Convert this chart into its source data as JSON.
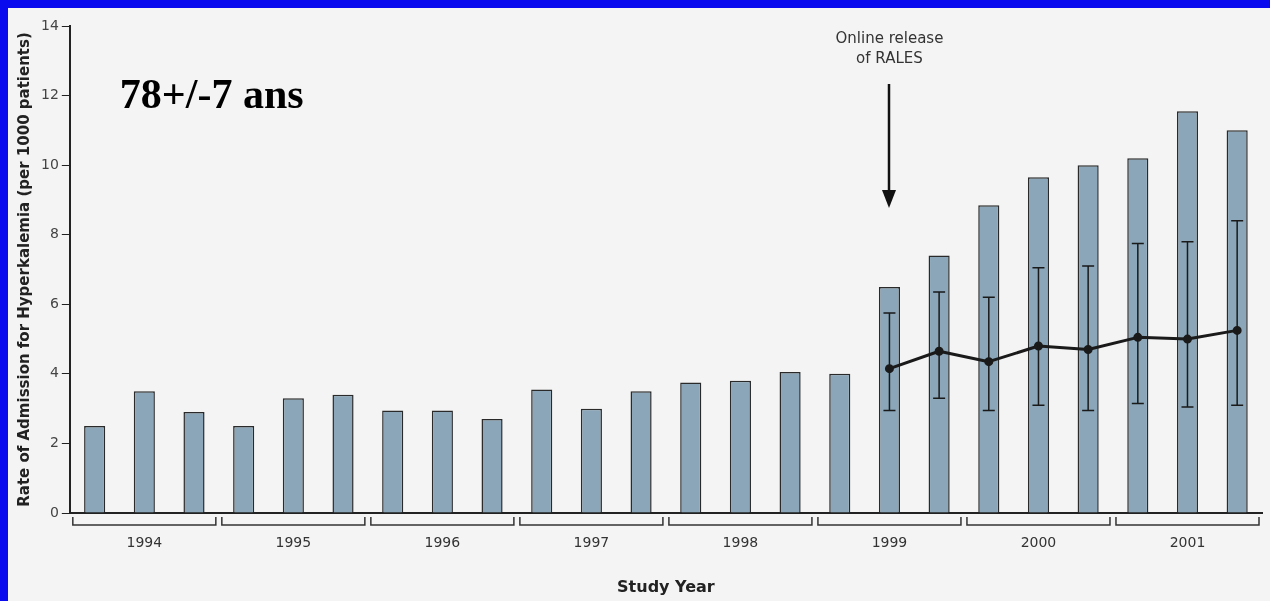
{
  "chart_data": {
    "type": "bar",
    "xlabel": "Study Year",
    "ylabel": "Rate of Admission for Hyperkalemia (per 1000 patients)",
    "categories": [
      null,
      "1994",
      null,
      null,
      "1995",
      null,
      null,
      "1996",
      null,
      null,
      "1997",
      null,
      null,
      "1998",
      null,
      null,
      "1999",
      null,
      null,
      "2000",
      null,
      null,
      "2001",
      null
    ],
    "series": [
      {
        "color": "#8aa6b8",
        "values": [
          2.5,
          3.5,
          2.9,
          2.5,
          3.3,
          3.4,
          2.95,
          2.95,
          2.7,
          3.55,
          3.0,
          3.5,
          3.75,
          3.8,
          4.05,
          4.0,
          6.5,
          7.4,
          8.85,
          9.65,
          10.0,
          10.2,
          11.55,
          11.0
        ]
      },
      {
        "type": "line",
        "color": "#1a1a1a",
        "values": [
          null,
          null,
          null,
          null,
          null,
          null,
          null,
          null,
          null,
          null,
          null,
          null,
          null,
          null,
          null,
          null,
          4.15,
          4.65,
          4.35,
          4.8,
          4.7,
          5.05,
          5.0,
          5.25
        ],
        "errors": [
          null,
          null,
          null,
          null,
          null,
          null,
          null,
          null,
          null,
          null,
          null,
          null,
          null,
          null,
          null,
          null,
          [
            2.95,
            5.75
          ],
          [
            3.3,
            6.35
          ],
          [
            2.95,
            6.2
          ],
          [
            3.1,
            7.05
          ],
          [
            2.95,
            7.1
          ],
          [
            3.15,
            7.75
          ],
          [
            3.05,
            7.8
          ],
          [
            3.1,
            8.4
          ]
        ]
      }
    ],
    "ylim": [
      0,
      14
    ],
    "yticks": [
      0,
      2,
      4,
      6,
      8,
      10,
      12,
      14
    ],
    "grid": false,
    "legend": false,
    "marker": "circle",
    "line_style": "solid",
    "annotations": [
      "78+/-7 ans",
      "Online release\nof RALES"
    ]
  }
}
